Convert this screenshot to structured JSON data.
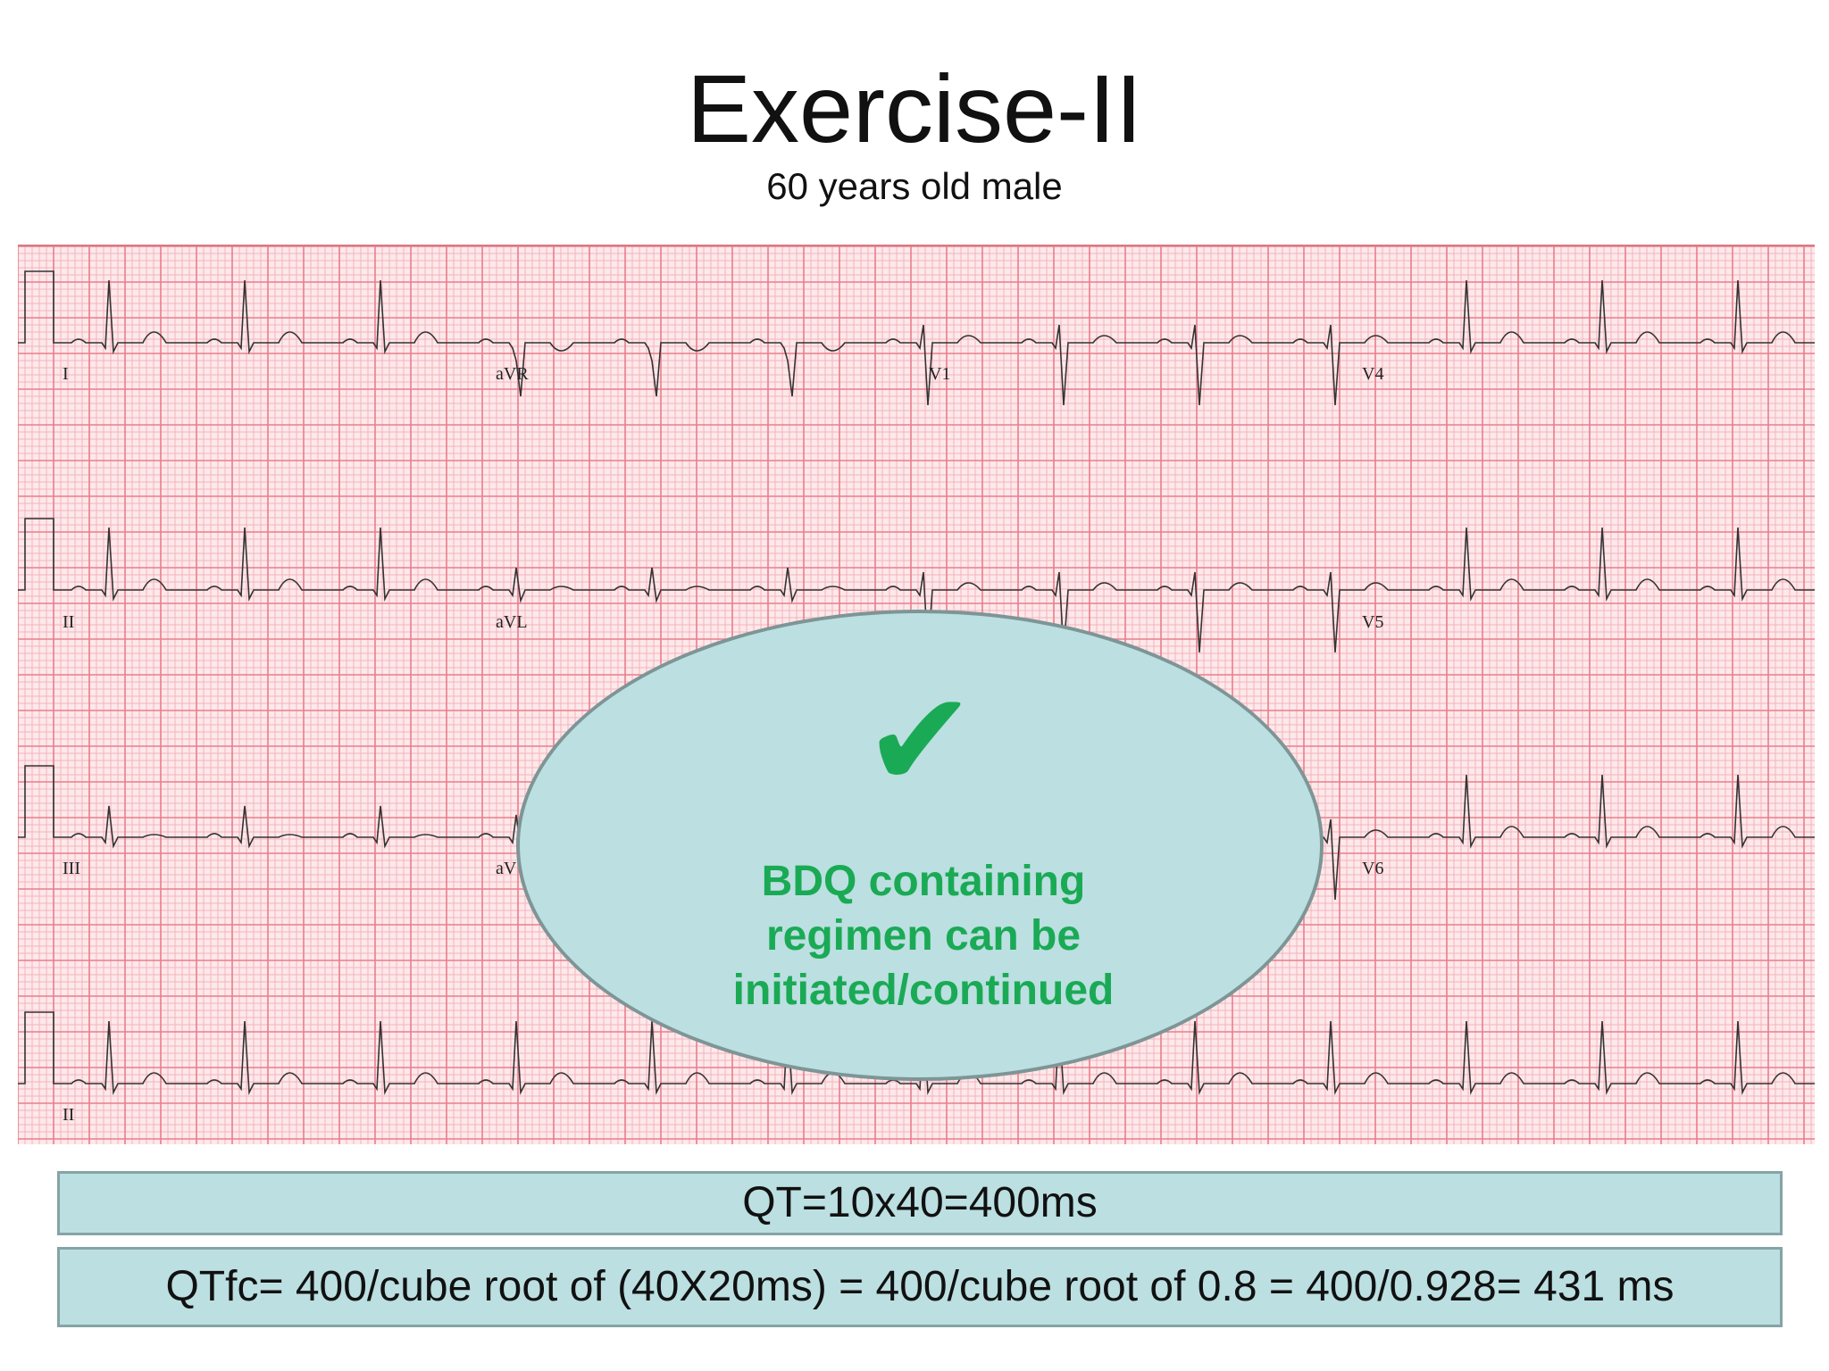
{
  "slide": {
    "title": "Exercise-II",
    "subtitle": "60 years old male"
  },
  "ecg": {
    "grid_fine_color": "#f4b3bc",
    "grid_major_color": "#ea7d8c",
    "trace_color": "#333333",
    "leads": [
      {
        "label": "I"
      },
      {
        "label": "aVR"
      },
      {
        "label": "V1"
      },
      {
        "label": "V4"
      },
      {
        "label": "II"
      },
      {
        "label": "aVL"
      },
      {
        "label": "V5"
      },
      {
        "label": "III"
      },
      {
        "label": "aV"
      },
      {
        "label": "V6"
      },
      {
        "label": "II"
      }
    ]
  },
  "verdict": {
    "icon": "checkmark-icon",
    "icon_glyph": "✔",
    "lines": [
      "BDQ containing",
      "regimen can be",
      "initiated/continued"
    ],
    "color": "#1aaa55"
  },
  "formulas": {
    "qt": "QT=10x40=400ms",
    "qtfc": "QTfc= 400/cube root of (40X20ms) = 400/cube root of 0.8 = 400/0.928= 431 ms"
  }
}
